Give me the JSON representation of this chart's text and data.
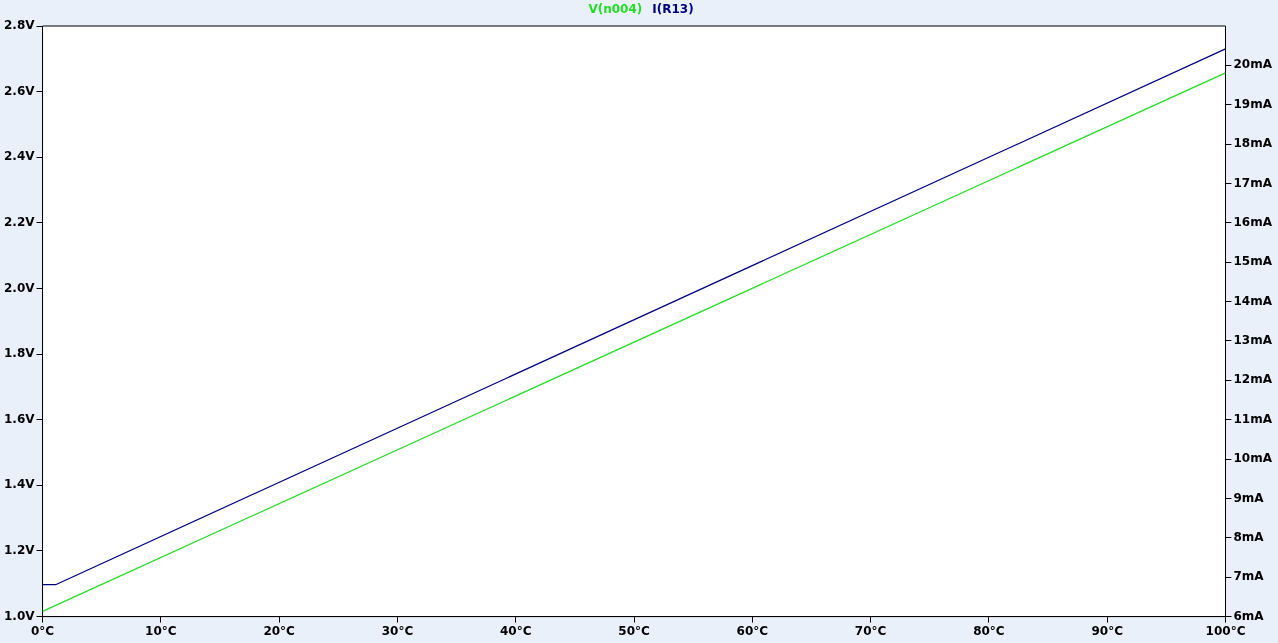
{
  "chart_data": {
    "type": "line",
    "x": [
      0,
      1.1,
      100
    ],
    "xlim": [
      0,
      100
    ],
    "xticks": [
      {
        "value": 0,
        "label": "0°C"
      },
      {
        "value": 10,
        "label": "10°C"
      },
      {
        "value": 20,
        "label": "20°C"
      },
      {
        "value": 30,
        "label": "30°C"
      },
      {
        "value": 40,
        "label": "40°C"
      },
      {
        "value": 50,
        "label": "50°C"
      },
      {
        "value": 60,
        "label": "60°C"
      },
      {
        "value": 70,
        "label": "70°C"
      },
      {
        "value": 80,
        "label": "80°C"
      },
      {
        "value": 90,
        "label": "90°C"
      },
      {
        "value": 100,
        "label": "100°C"
      }
    ],
    "ylim": [
      1.0,
      2.8
    ],
    "yticks": [
      {
        "value": 1.0,
        "label": "1.0V"
      },
      {
        "value": 1.2,
        "label": "1.2V"
      },
      {
        "value": 1.4,
        "label": "1.4V"
      },
      {
        "value": 1.6,
        "label": "1.6V"
      },
      {
        "value": 1.8,
        "label": "1.8V"
      },
      {
        "value": 2.0,
        "label": "2.0V"
      },
      {
        "value": 2.2,
        "label": "2.2V"
      },
      {
        "value": 2.4,
        "label": "2.4V"
      },
      {
        "value": 2.6,
        "label": "2.6V"
      },
      {
        "value": 2.8,
        "label": "2.8V"
      }
    ],
    "y2lim": [
      6,
      21
    ],
    "y2ticks": [
      {
        "value": 6,
        "label": "6mA"
      },
      {
        "value": 7,
        "label": "7mA"
      },
      {
        "value": 8,
        "label": "8mA"
      },
      {
        "value": 9,
        "label": "9mA"
      },
      {
        "value": 10,
        "label": "10mA"
      },
      {
        "value": 11,
        "label": "11mA"
      },
      {
        "value": 12,
        "label": "12mA"
      },
      {
        "value": 13,
        "label": "13mA"
      },
      {
        "value": 14,
        "label": "14mA"
      },
      {
        "value": 15,
        "label": "15mA"
      },
      {
        "value": 16,
        "label": "16mA"
      },
      {
        "value": 17,
        "label": "17mA"
      },
      {
        "value": 18,
        "label": "18mA"
      },
      {
        "value": 19,
        "label": "19mA"
      },
      {
        "value": 20,
        "label": "20mA"
      }
    ],
    "series": [
      {
        "name": "V(n004)",
        "color": "#22dd22",
        "x": [
          0,
          100
        ],
        "values": [
          1.016,
          2.657
        ]
      },
      {
        "name": "I(R13)",
        "color": "#000080",
        "axis": "y2",
        "values": [
          6.81,
          6.81,
          20.42
        ]
      }
    ],
    "legend": "top",
    "grid": false,
    "marker": "none",
    "line_style": "solid"
  }
}
